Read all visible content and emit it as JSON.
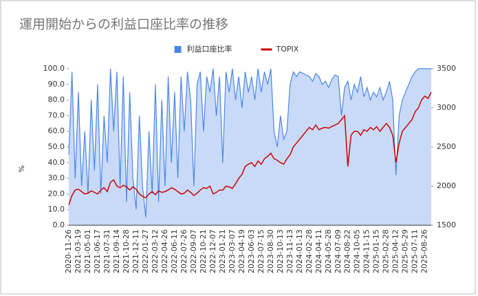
{
  "chart_data": {
    "type": "area_line",
    "title": "運用開始からの利益口座比率の推移",
    "ylabel": "%",
    "categories": [
      "2020-11-26",
      null,
      null,
      "2021-03-19",
      null,
      null,
      "2021-05-01",
      null,
      null,
      "2021-06-17",
      null,
      null,
      "2021-07-31",
      null,
      null,
      "2021-09-14",
      null,
      null,
      "2021-10-28",
      null,
      null,
      "2021-12-11",
      null,
      null,
      "2022-01-27",
      null,
      null,
      "2022-03-12",
      null,
      null,
      "2022-04-26",
      null,
      null,
      "2022-06-11",
      null,
      null,
      "2022-07-26",
      null,
      null,
      "2022-09-07",
      null,
      null,
      "2022-10-21",
      null,
      null,
      "2022-12-07",
      null,
      null,
      "2023-01-21",
      null,
      null,
      "2023-03-07",
      null,
      null,
      "2023-04-19",
      null,
      null,
      "2023-06-03",
      null,
      null,
      "2023-07-15",
      null,
      null,
      "2023-08-30",
      null,
      null,
      "2023-10-13",
      null,
      null,
      "2023-11-13",
      null,
      null,
      "2024-01-13",
      null,
      null,
      "2024-02-28",
      null,
      null,
      "2024-04-11",
      null,
      null,
      "2024-05-28",
      null,
      null,
      "2024-07-09",
      null,
      null,
      "2024-08-22",
      null,
      null,
      "2024-10-05",
      null,
      null,
      "2024-11-15",
      null,
      null,
      "2025-01-15",
      null,
      null,
      "2025-02-28",
      null,
      null,
      "2025-04-12",
      null,
      null,
      "2025-05-29",
      null,
      null,
      "2025-07-11",
      null,
      null,
      "2025-08-26",
      null,
      null
    ],
    "series": [
      {
        "name": "利益口座比率",
        "color": "#4a86e8",
        "fill": "#c9daf8",
        "kind": "area",
        "axis": "y",
        "values": [
          45,
          98,
          30,
          85,
          25,
          60,
          20,
          80,
          35,
          90,
          20,
          70,
          40,
          100,
          60,
          98,
          25,
          95,
          15,
          85,
          30,
          10,
          70,
          25,
          5,
          60,
          20,
          90,
          15,
          80,
          25,
          95,
          40,
          85,
          30,
          95,
          60,
          98,
          80,
          25,
          90,
          98,
          60,
          95,
          85,
          100,
          70,
          95,
          40,
          98,
          85,
          100,
          80,
          95,
          75,
          98,
          85,
          95,
          80,
          100,
          85,
          98,
          90,
          100,
          60,
          50,
          70,
          55,
          60,
          90,
          98,
          95,
          98,
          97,
          96,
          95,
          92,
          97,
          95,
          90,
          92,
          88,
          93,
          96,
          95,
          70,
          88,
          92,
          80,
          90,
          85,
          95,
          82,
          88,
          80,
          85,
          82,
          88,
          80,
          85,
          92,
          80,
          32,
          70,
          80,
          85,
          90,
          95,
          98,
          100,
          100,
          100,
          100,
          100
        ]
      },
      {
        "name": "TOPIX",
        "color": "#cc0000",
        "kind": "line",
        "axis": "y2",
        "values": [
          1760,
          1880,
          1950,
          1960,
          1930,
          1900,
          1910,
          1940,
          1920,
          1900,
          1950,
          1980,
          1930,
          2050,
          2080,
          2000,
          1980,
          2010,
          1990,
          1950,
          1990,
          1960,
          1900,
          1870,
          1850,
          1900,
          1930,
          1890,
          1940,
          1920,
          1930,
          1950,
          1980,
          1960,
          1930,
          1900,
          1910,
          1950,
          1920,
          1880,
          1910,
          1950,
          1980,
          1970,
          2000,
          1900,
          1920,
          1950,
          1950,
          2000,
          1990,
          1970,
          2030,
          2100,
          2150,
          2250,
          2280,
          2300,
          2250,
          2320,
          2280,
          2350,
          2380,
          2420,
          2350,
          2330,
          2300,
          2280,
          2350,
          2400,
          2500,
          2550,
          2600,
          2650,
          2700,
          2750,
          2720,
          2780,
          2720,
          2740,
          2750,
          2740,
          2760,
          2780,
          2800,
          2850,
          2900,
          2250,
          2650,
          2700,
          2700,
          2650,
          2720,
          2700,
          2750,
          2720,
          2760,
          2700,
          2750,
          2800,
          2750,
          2650,
          2300,
          2550,
          2700,
          2750,
          2800,
          2850,
          2950,
          3000,
          3100,
          3150,
          3120,
          3200
        ]
      }
    ],
    "ylim": [
      0,
      100
    ],
    "yticks": [
      {
        "value": 0,
        "label": "0.0"
      },
      {
        "value": 10,
        "label": "10.0"
      },
      {
        "value": 20,
        "label": "20.0"
      },
      {
        "value": 30,
        "label": "30.0"
      },
      {
        "value": 40,
        "label": "40.0"
      },
      {
        "value": 50,
        "label": "50.0"
      },
      {
        "value": 60,
        "label": "60.0"
      },
      {
        "value": 70,
        "label": "70.0"
      },
      {
        "value": 80,
        "label": "80.0"
      },
      {
        "value": 90,
        "label": "90.0"
      },
      {
        "value": 100,
        "label": "100.0"
      }
    ],
    "y2lim": [
      1500,
      3500
    ],
    "y2ticks": [
      1500,
      2000,
      2500,
      3000,
      3500
    ],
    "legend": "top"
  }
}
